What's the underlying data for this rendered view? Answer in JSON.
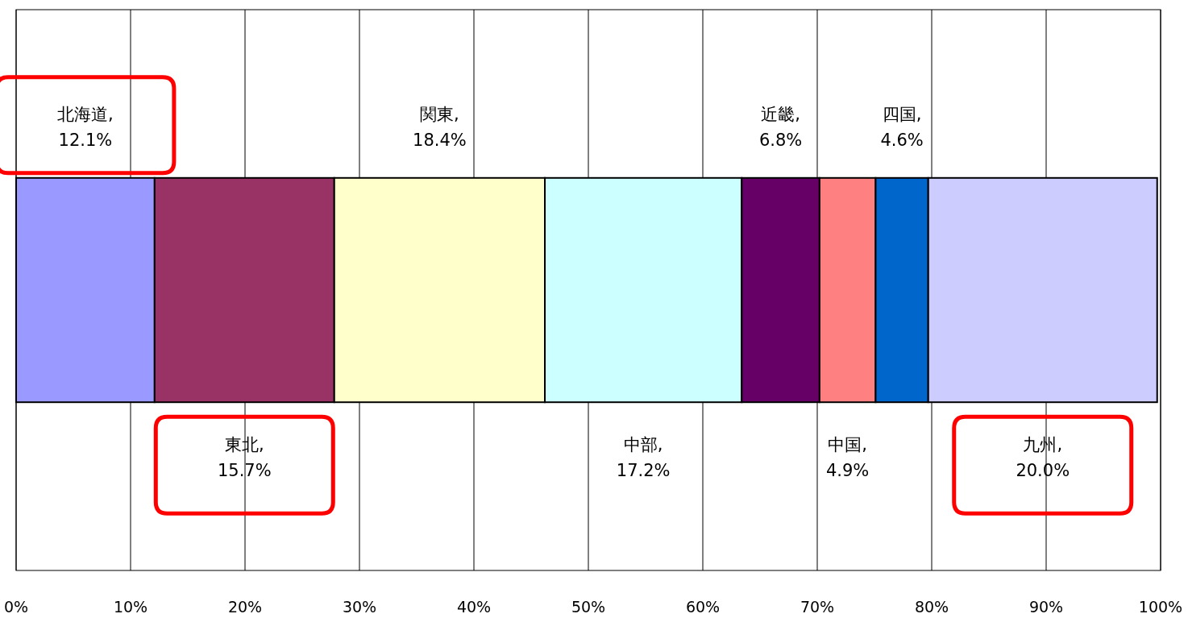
{
  "chart_data": {
    "type": "bar",
    "orientation": "horizontal",
    "stacked": true,
    "categories": [
      null
    ],
    "series": [
      {
        "color": "#9999ff",
        "values": [
          12.1
        ]
      },
      {
        "color": "#993366",
        "values": [
          15.7
        ]
      },
      {
        "color": "#ffffcc",
        "values": [
          18.4
        ]
      },
      {
        "color": "#ccffff",
        "values": [
          17.2
        ]
      },
      {
        "color": "#660066",
        "values": [
          6.8
        ]
      },
      {
        "color": "#ff8080",
        "values": [
          4.9
        ]
      },
      {
        "color": "#0066cc",
        "values": [
          4.6
        ]
      },
      {
        "color": "#ccccff",
        "values": [
          20.0
        ]
      }
    ],
    "annotations": [
      "北海道, 12.1%",
      "東北, 15.7%",
      "関東, 18.4%",
      "中部, 17.2%",
      "近畿, 6.8%",
      "中国, 4.9%",
      "四国, 4.6%",
      "九州, 20.0%"
    ],
    "xlim": [
      0,
      100
    ],
    "xticks": [
      {
        "value": 0,
        "label": "0%"
      },
      {
        "value": 10,
        "label": "10%"
      },
      {
        "value": 20,
        "label": "20%"
      },
      {
        "value": 30,
        "label": "30%"
      },
      {
        "value": 40,
        "label": "40%"
      },
      {
        "value": 50,
        "label": "50%"
      },
      {
        "value": 60,
        "label": "60%"
      },
      {
        "value": 70,
        "label": "70%"
      },
      {
        "value": 80,
        "label": "80%"
      },
      {
        "value": 90,
        "label": "90%"
      },
      {
        "value": 100,
        "label": "100%"
      }
    ],
    "grid": "x"
  }
}
